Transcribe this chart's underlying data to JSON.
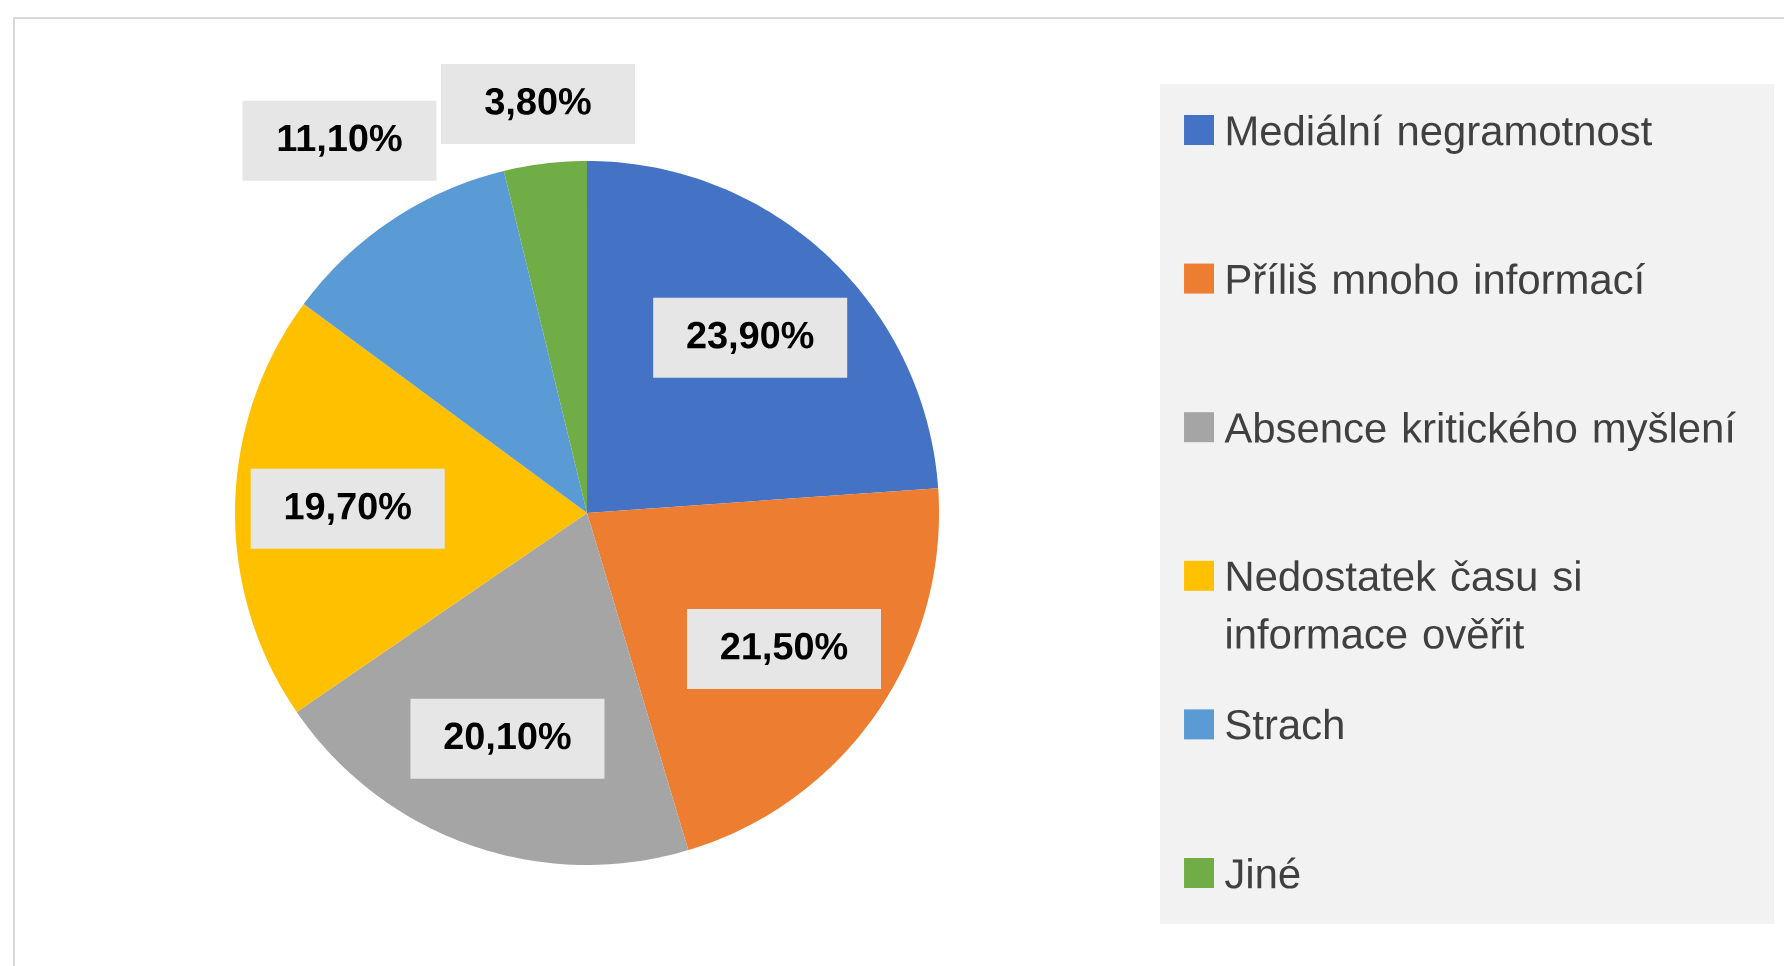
{
  "chart_data": {
    "type": "pie",
    "categories": [
      "Mediální negramotnost",
      "Příliš mnoho informací",
      "Absence kritického myšlení",
      "Nedostatek času si informace ověřit",
      "Strach",
      "Jiné"
    ],
    "values": [
      23.9,
      21.5,
      20.1,
      19.7,
      11.1,
      3.8
    ],
    "value_labels": [
      "23,90%",
      "21,50%",
      "20,10%",
      "19,70%",
      "11,10%",
      "3,80%"
    ],
    "colors": [
      "#4472c4",
      "#ed7d31",
      "#a5a5a5",
      "#ffc000",
      "#5b9bd5",
      "#70ad47"
    ],
    "legend": "right"
  }
}
